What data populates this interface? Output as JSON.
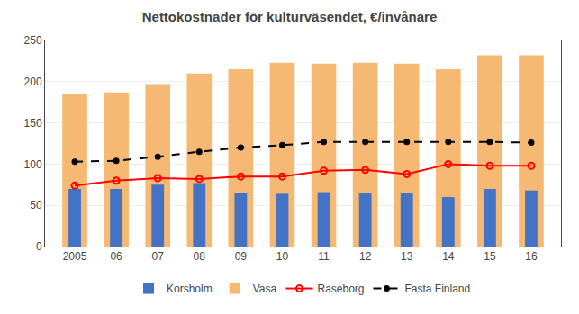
{
  "chart_data": {
    "type": "bar",
    "title": "Nettokostnader för kulturväsendet, €/invånare",
    "categories": [
      "2005",
      "06",
      "07",
      "08",
      "09",
      "10",
      "11",
      "12",
      "13",
      "14",
      "15",
      "16"
    ],
    "series": [
      {
        "name": "Korsholm",
        "type": "bar",
        "color": "#4472C4",
        "values": [
          70,
          70,
          75,
          77,
          65,
          64,
          66,
          65,
          65,
          60,
          70,
          68
        ]
      },
      {
        "name": "Vasa",
        "type": "bar",
        "color": "#F5B974",
        "values": [
          185,
          187,
          197,
          210,
          215,
          223,
          222,
          223,
          222,
          215,
          232,
          232
        ]
      },
      {
        "name": "Raseborg",
        "type": "line",
        "color": "#FF0000",
        "marker": "circle-open",
        "line_style": "solid",
        "values": [
          74,
          80,
          83,
          82,
          85,
          85,
          92,
          93,
          88,
          100,
          98,
          98
        ]
      },
      {
        "name": "Fasta Finland",
        "type": "line",
        "color": "#000000",
        "marker": "circle",
        "line_style": "dashed",
        "values": [
          103,
          104,
          109,
          115,
          120,
          123,
          127,
          127,
          127,
          127,
          127,
          126
        ]
      }
    ],
    "ylim": [
      0,
      250
    ],
    "yticks": [
      0,
      50,
      100,
      150,
      200,
      250
    ],
    "grid": true,
    "legend": "bottom"
  }
}
